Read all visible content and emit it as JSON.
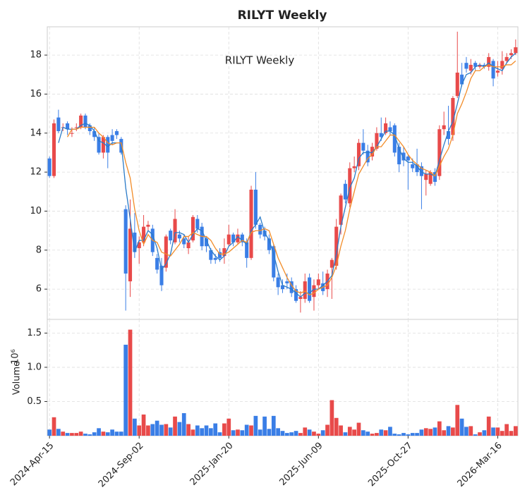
{
  "chart_data": {
    "type": "candlestick",
    "title": "RILYT  Weekly",
    "annotation": "RILYT  Weekly",
    "up_color": "#e84a4a",
    "down_color": "#3a7ee6",
    "categories": [
      "2024-Apr-15",
      null,
      null,
      null,
      null,
      null,
      null,
      null,
      null,
      null,
      null,
      null,
      null,
      null,
      null,
      null,
      null,
      null,
      null,
      null,
      "2024-Sep-02",
      null,
      null,
      null,
      null,
      null,
      null,
      null,
      null,
      null,
      null,
      null,
      null,
      null,
      null,
      null,
      null,
      null,
      null,
      null,
      "2025-Jan-20",
      null,
      null,
      null,
      null,
      null,
      null,
      null,
      null,
      null,
      null,
      null,
      null,
      null,
      null,
      null,
      null,
      null,
      null,
      null,
      "2025-Jun-09",
      null,
      null,
      null,
      null,
      null,
      null,
      null,
      null,
      null,
      null,
      null,
      null,
      null,
      null,
      null,
      null,
      null,
      null,
      null,
      "2025-Oct-27",
      null,
      null,
      null,
      null,
      null,
      null,
      null,
      null,
      null,
      null,
      null,
      null,
      null,
      null,
      null,
      null,
      null,
      null,
      null,
      "2026-Mar-16",
      null,
      null,
      null,
      null
    ],
    "open": [
      12.7,
      11.8,
      14.8,
      14.3,
      14.5,
      14.0,
      14.3,
      14.3,
      14.9,
      14.4,
      14.1,
      13.8,
      13.0,
      13.8,
      13.9,
      14.1,
      13.7,
      10.1,
      6.4,
      8.9,
      8.1,
      8.4,
      9.2,
      9.1,
      7.6,
      7.2,
      7.1,
      9.0,
      8.4,
      8.8,
      8.6,
      8.1,
      8.5,
      9.6,
      9.2,
      8.6,
      8.0,
      7.6,
      7.9,
      7.7,
      8.3,
      8.8,
      8.4,
      8.8,
      8.4,
      7.6,
      11.1,
      9.3,
      9.0,
      8.6,
      8.2,
      6.6,
      6.2,
      6.4,
      6.4,
      6.0,
      5.5,
      5.5,
      6.6,
      5.6,
      6.2,
      6.3,
      6.0,
      7.1,
      7.2,
      9.3,
      11.4,
      10.4,
      12.2,
      12.3,
      13.5,
      13.1,
      12.8,
      13.2,
      14.0,
      14.0,
      14.3,
      14.4,
      13.3,
      13.0,
      12.8,
      12.4,
      12.4,
      12.3,
      11.6,
      11.4,
      12.0,
      11.8,
      14.2,
      14.1,
      13.9,
      15.9,
      17.0,
      17.6,
      17.2,
      17.6,
      17.4,
      17.5,
      17.4,
      17.7,
      17.1,
      17.3,
      17.7,
      18.0,
      18.1
    ],
    "high": [
      12.8,
      14.7,
      15.2,
      14.5,
      14.6,
      14.3,
      14.5,
      15.0,
      15.0,
      14.5,
      14.3,
      14.0,
      13.9,
      13.9,
      14.2,
      14.2,
      13.8,
      10.3,
      10.6,
      9.9,
      8.7,
      9.8,
      9.5,
      9.3,
      7.8,
      7.6,
      8.8,
      9.1,
      10.1,
      9.0,
      8.8,
      8.7,
      9.8,
      9.8,
      9.4,
      8.7,
      8.1,
      7.8,
      8.1,
      8.6,
      9.3,
      8.9,
      9.1,
      8.9,
      8.6,
      11.3,
      12.0,
      9.4,
      9.2,
      8.8,
      8.3,
      6.8,
      6.5,
      6.8,
      6.6,
      6.2,
      5.9,
      6.8,
      6.8,
      6.5,
      6.8,
      6.9,
      7.0,
      7.6,
      9.6,
      10.9,
      11.6,
      12.5,
      12.8,
      13.7,
      14.2,
      13.4,
      13.5,
      14.3,
      14.8,
      14.8,
      14.6,
      14.5,
      13.5,
      13.3,
      12.9,
      12.7,
      13.2,
      12.5,
      12.1,
      12.1,
      12.2,
      14.4,
      15.1,
      15.4,
      15.9,
      19.2,
      17.6,
      17.9,
      17.8,
      17.7,
      17.6,
      17.6,
      18.1,
      17.8,
      17.7,
      18.2,
      18.1,
      18.3,
      18.8
    ],
    "low": [
      11.7,
      11.7,
      14.0,
      14.1,
      13.9,
      13.8,
      14.1,
      14.2,
      14.2,
      13.9,
      13.6,
      12.9,
      12.7,
      12.2,
      13.4,
      13.7,
      12.9,
      4.9,
      5.6,
      7.6,
      7.3,
      8.2,
      9.0,
      7.7,
      6.8,
      5.9,
      6.9,
      8.3,
      8.3,
      8.4,
      8.1,
      7.8,
      8.4,
      8.9,
      8.0,
      7.9,
      7.3,
      7.3,
      7.4,
      7.3,
      8.2,
      8.2,
      8.3,
      8.2,
      7.1,
      7.5,
      9.1,
      8.6,
      8.5,
      7.8,
      6.4,
      5.7,
      5.8,
      6.0,
      5.6,
      5.3,
      4.8,
      5.3,
      5.3,
      4.9,
      6.0,
      5.7,
      5.6,
      5.5,
      7.0,
      8.8,
      10.4,
      10.2,
      12.0,
      12.1,
      12.9,
      12.3,
      12.6,
      13.1,
      13.6,
      13.9,
      13.9,
      12.8,
      12.0,
      12.3,
      11.1,
      12.0,
      11.8,
      10.1,
      10.8,
      11.3,
      11.3,
      11.6,
      13.9,
      13.4,
      13.6,
      15.8,
      16.4,
      17.1,
      17.0,
      17.2,
      17.3,
      17.3,
      17.2,
      16.4,
      16.9,
      17.0,
      17.6,
      17.8,
      18.0
    ],
    "close": [
      11.8,
      14.5,
      14.1,
      14.3,
      14.2,
      14.0,
      14.3,
      14.9,
      14.3,
      14.1,
      13.8,
      13.0,
      13.8,
      13.0,
      13.6,
      13.9,
      13.0,
      6.8,
      9.1,
      7.9,
      8.4,
      9.2,
      9.3,
      7.9,
      7.0,
      6.2,
      8.7,
      8.5,
      9.6,
      8.6,
      8.3,
      8.4,
      9.7,
      9.1,
      8.2,
      8.2,
      7.5,
      7.5,
      7.6,
      8.1,
      8.8,
      8.4,
      8.8,
      8.4,
      7.6,
      11.1,
      9.3,
      8.8,
      8.7,
      8.0,
      6.6,
      6.1,
      6.0,
      6.3,
      5.8,
      5.4,
      5.6,
      6.4,
      5.4,
      6.2,
      6.5,
      5.9,
      6.8,
      7.5,
      9.2,
      10.8,
      10.6,
      12.2,
      12.3,
      13.5,
      13.1,
      12.5,
      13.3,
      14.0,
      13.8,
      14.5,
      14.1,
      13.0,
      12.4,
      12.6,
      12.6,
      12.2,
      12.0,
      11.8,
      11.9,
      12.0,
      11.5,
      14.2,
      14.4,
      13.7,
      15.8,
      17.1,
      16.5,
      17.3,
      17.5,
      17.4,
      17.5,
      17.4,
      17.9,
      16.8,
      17.2,
      17.7,
      17.9,
      18.1,
      18.4
    ],
    "volume": [
      0.09,
      0.27,
      0.1,
      0.06,
      0.04,
      0.04,
      0.04,
      0.06,
      0.03,
      0.02,
      0.05,
      0.11,
      0.06,
      0.05,
      0.09,
      0.06,
      0.06,
      1.33,
      1.55,
      0.25,
      0.15,
      0.31,
      0.15,
      0.17,
      0.22,
      0.16,
      0.17,
      0.12,
      0.28,
      0.2,
      0.33,
      0.17,
      0.09,
      0.15,
      0.11,
      0.15,
      0.11,
      0.18,
      0.05,
      0.18,
      0.25,
      0.08,
      0.09,
      0.08,
      0.16,
      0.15,
      0.29,
      0.09,
      0.28,
      0.1,
      0.29,
      0.11,
      0.07,
      0.04,
      0.05,
      0.07,
      0.04,
      0.12,
      0.09,
      0.06,
      0.03,
      0.08,
      0.16,
      0.52,
      0.26,
      0.15,
      0.05,
      0.13,
      0.09,
      0.19,
      0.08,
      0.06,
      0.03,
      0.04,
      0.09,
      0.08,
      0.13,
      0.03,
      0.02,
      0.04,
      0.02,
      0.04,
      0.04,
      0.09,
      0.11,
      0.1,
      0.12,
      0.21,
      0.08,
      0.14,
      0.12,
      0.45,
      0.25,
      0.13,
      0.14,
      0.02,
      0.05,
      0.08,
      0.28,
      0.12,
      0.12,
      0.07,
      0.17,
      0.07,
      0.14
    ],
    "ma": [
      {
        "color": "#2b7bc8",
        "values": [
          null,
          null,
          13.5,
          14.3,
          14.2,
          14.2,
          14.2,
          14.4,
          14.5,
          14.4,
          14.1,
          13.6,
          13.5,
          13.3,
          13.5,
          13.5,
          13.5,
          11.2,
          9.6,
          7.9,
          8.5,
          8.5,
          9.0,
          8.8,
          8.1,
          7.0,
          7.3,
          7.8,
          8.9,
          8.9,
          8.8,
          8.4,
          8.8,
          9.1,
          9.0,
          8.5,
          8.0,
          7.7,
          7.5,
          7.7,
          8.2,
          8.4,
          8.7,
          8.5,
          8.3,
          9.0,
          9.3,
          9.7,
          8.9,
          8.5,
          7.8,
          6.9,
          6.2,
          6.1,
          6.0,
          5.8,
          5.6,
          5.8,
          5.8,
          6.0,
          6.0,
          6.2,
          6.4,
          6.7,
          7.8,
          9.2,
          10.2,
          11.2,
          11.7,
          12.7,
          13.0,
          13.0,
          13.0,
          13.3,
          13.7,
          14.1,
          14.1,
          13.9,
          13.2,
          12.7,
          12.5,
          12.5,
          12.3,
          12.0,
          11.9,
          11.9,
          11.8,
          12.6,
          13.4,
          14.1,
          14.6,
          15.5,
          16.5,
          17.0,
          17.1,
          17.4,
          17.5,
          17.4,
          17.6,
          17.4,
          17.3,
          17.2,
          17.6,
          17.9,
          18.1
        ]
      },
      {
        "color": "#f28c28",
        "values": [
          null,
          null,
          null,
          null,
          13.8,
          14.2,
          14.2,
          14.3,
          14.3,
          14.3,
          14.3,
          14.0,
          13.8,
          13.5,
          13.4,
          13.5,
          13.5,
          12.5,
          11.7,
          10.1,
          9.0,
          8.3,
          8.8,
          8.5,
          8.4,
          7.9,
          7.8,
          7.7,
          8.0,
          8.3,
          8.7,
          8.7,
          8.9,
          8.8,
          8.7,
          8.7,
          8.5,
          8.1,
          7.8,
          7.8,
          7.9,
          8.1,
          8.3,
          8.5,
          8.4,
          8.9,
          9.0,
          9.0,
          9.1,
          9.0,
          8.3,
          7.6,
          7.1,
          6.6,
          6.2,
          5.9,
          5.8,
          5.9,
          5.7,
          5.8,
          6.0,
          6.1,
          6.2,
          6.6,
          7.2,
          8.2,
          9.0,
          10.1,
          11.0,
          11.9,
          12.3,
          12.7,
          12.9,
          13.3,
          13.3,
          13.6,
          13.9,
          13.9,
          13.6,
          13.3,
          12.9,
          12.6,
          12.4,
          12.2,
          12.1,
          12.0,
          11.8,
          12.3,
          12.8,
          13.2,
          13.9,
          15.0,
          15.5,
          16.1,
          16.8,
          17.2,
          17.2,
          17.4,
          17.5,
          17.4,
          17.4,
          17.4,
          17.5,
          17.5,
          17.7
        ]
      }
    ],
    "ylim": [
      4.45,
      19.45
    ],
    "yticks": [
      6,
      8,
      10,
      12,
      14,
      16,
      18
    ],
    "volume_label": "Volume",
    "volume_unit": "10⁶",
    "volume_ylim": [
      0,
      1.7
    ],
    "volume_yticks": [
      0.5,
      {
        "value": 1.0,
        "label": "1.0"
      },
      1.5
    ],
    "grid": true
  }
}
